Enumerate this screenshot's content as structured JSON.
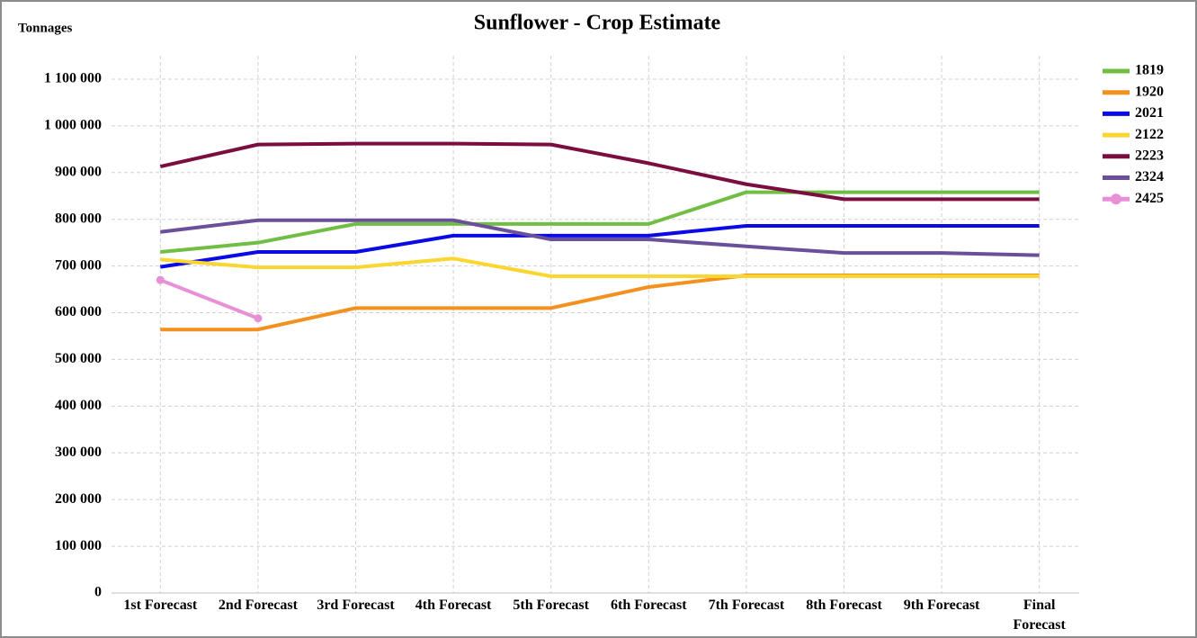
{
  "chart_data": {
    "type": "line",
    "title": "Sunflower - Crop Estimate",
    "y_label": "Tonnages",
    "categories": [
      "1st Forecast",
      "2nd Forecast",
      "3rd Forecast",
      "4th Forecast",
      "5th Forecast",
      "6th Forecast",
      "7th Forecast",
      "8th Forecast",
      "9th Forecast",
      "Final Forecast"
    ],
    "series": [
      {
        "name": "1819",
        "color": "#70bf44",
        "values": [
          730000,
          750000,
          790000,
          790000,
          790000,
          790000,
          858000,
          858000,
          858000,
          858000
        ]
      },
      {
        "name": "1920",
        "color": "#f4901e",
        "values": [
          564000,
          564000,
          610000,
          610000,
          610000,
          655000,
          680000,
          680000,
          680000,
          680000
        ]
      },
      {
        "name": "2021",
        "color": "#0a0ae6",
        "values": [
          698000,
          730000,
          730000,
          765000,
          765000,
          765000,
          786000,
          786000,
          786000,
          786000
        ]
      },
      {
        "name": "2122",
        "color": "#fad630",
        "values": [
          714000,
          697000,
          697000,
          716000,
          678000,
          678000,
          678000,
          678000,
          678000,
          678000
        ]
      },
      {
        "name": "2223",
        "color": "#7b0d3f",
        "values": [
          913000,
          960000,
          962000,
          962000,
          960000,
          920000,
          875000,
          843000,
          843000,
          843000
        ]
      },
      {
        "name": "2324",
        "color": "#6a4f9a",
        "values": [
          773000,
          798000,
          798000,
          798000,
          757000,
          757000,
          742000,
          728000,
          728000,
          723000
        ]
      },
      {
        "name": "2425",
        "color": "#e88fd6",
        "marker": "circle",
        "values": [
          670000,
          588000,
          null,
          null,
          null,
          null,
          null,
          null,
          null,
          null
        ]
      }
    ],
    "ylim": [
      0,
      1150000
    ],
    "yticks": [
      0,
      {
        "value": 100000,
        "label": "100 000"
      },
      {
        "value": 200000,
        "label": "200 000"
      },
      {
        "value": 300000,
        "label": "300 000"
      },
      {
        "value": 400000,
        "label": "400 000"
      },
      {
        "value": 500000,
        "label": "500 000"
      },
      {
        "value": 600000,
        "label": "600 000"
      },
      {
        "value": 700000,
        "label": "700 000"
      },
      {
        "value": 800000,
        "label": "800 000"
      },
      {
        "value": 900000,
        "label": "900 000"
      },
      {
        "value": 1000000,
        "label": "1 000 000"
      },
      {
        "value": 1100000,
        "label": "1 100 000"
      }
    ],
    "grid": true,
    "legend": "right"
  }
}
